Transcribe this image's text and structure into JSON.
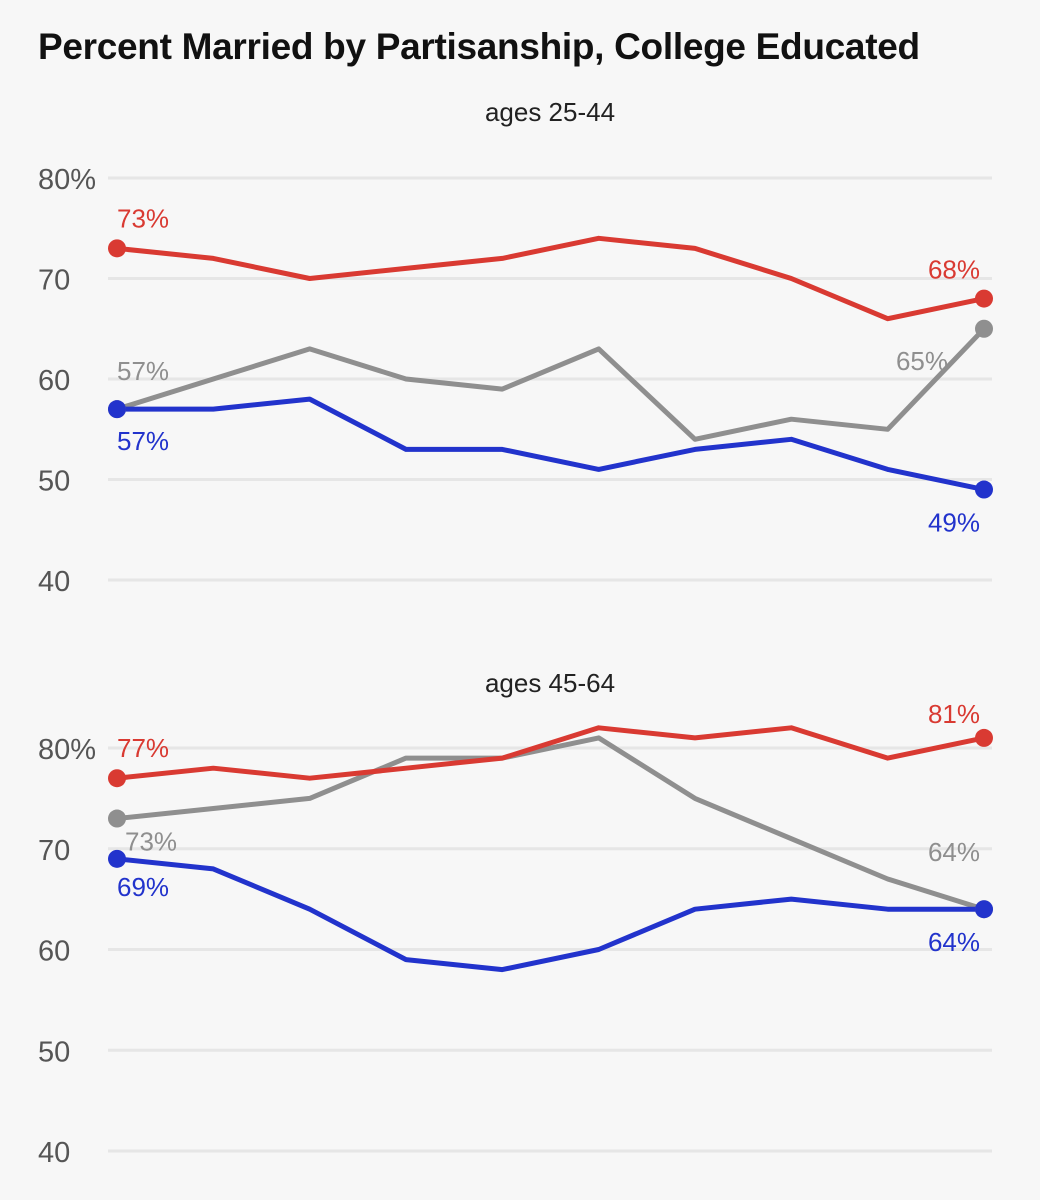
{
  "title": "Percent Married by Partisanship, College Educated",
  "colors": {
    "republican": "#d93a32",
    "independent": "#8f8f8f",
    "democrat": "#2233cc",
    "grid": "#e6e6e6"
  },
  "chart_data": [
    {
      "type": "line",
      "subtitle": "ages 25-44",
      "ylim": [
        40,
        80
      ],
      "yticks": [
        80,
        70,
        60,
        50,
        40
      ],
      "ytick_labels": [
        "80%",
        "70",
        "60",
        "50",
        "40"
      ],
      "grid": true,
      "x": [
        0,
        1,
        2,
        3,
        4,
        5,
        6,
        7,
        8,
        9
      ],
      "series": [
        {
          "key": "republican",
          "values": [
            73,
            72,
            70,
            71,
            72,
            74,
            73,
            70,
            66,
            68
          ],
          "start_label": "73%",
          "end_label": "68%"
        },
        {
          "key": "independent",
          "values": [
            57,
            60,
            63,
            60,
            59,
            63,
            54,
            56,
            55,
            65
          ],
          "start_label": "57%",
          "end_label": "65%"
        },
        {
          "key": "democrat",
          "values": [
            57,
            57,
            58,
            53,
            53,
            51,
            53,
            54,
            51,
            49
          ],
          "start_label": "57%",
          "end_label": "49%"
        }
      ]
    },
    {
      "type": "line",
      "subtitle": "ages 45-64",
      "ylim": [
        40,
        80
      ],
      "yticks": [
        80,
        70,
        60,
        50,
        40
      ],
      "ytick_labels": [
        "80%",
        "70",
        "60",
        "50",
        "40"
      ],
      "grid": true,
      "x": [
        0,
        1,
        2,
        3,
        4,
        5,
        6,
        7,
        8,
        9
      ],
      "series": [
        {
          "key": "republican",
          "values": [
            77,
            78,
            77,
            78,
            79,
            82,
            81,
            82,
            79,
            81
          ],
          "start_label": "77%",
          "end_label": "81%"
        },
        {
          "key": "independent",
          "values": [
            73,
            74,
            75,
            79,
            79,
            81,
            75,
            71,
            67,
            64
          ],
          "start_label": "73%",
          "end_label": "64%"
        },
        {
          "key": "democrat",
          "values": [
            69,
            68,
            64,
            59,
            58,
            60,
            64,
            65,
            64,
            64
          ],
          "start_label": "69%",
          "end_label": "64%"
        }
      ]
    }
  ]
}
